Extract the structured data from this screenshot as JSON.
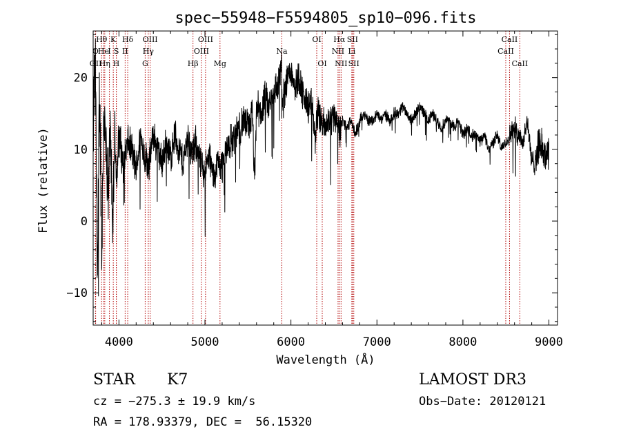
{
  "chart_data": {
    "type": "line",
    "title": "spec−55948−F5594805_sp10−096.fits",
    "xlabel": "Wavelength (Å)",
    "ylabel": "Flux (relative)",
    "xlim": [
      3700,
      9100
    ],
    "ylim": [
      -14.5,
      26.5
    ],
    "xticks": [
      4000,
      5000,
      6000,
      7000,
      8000,
      9000
    ],
    "yticks": [
      -10,
      0,
      10,
      20
    ],
    "ytick_labels": [
      "−10",
      "0",
      "10",
      "20"
    ],
    "grid": false,
    "series": [
      {
        "name": "flux",
        "x": [
          3700,
          3725,
          3750,
          3775,
          3800,
          3825,
          3850,
          3875,
          3900,
          3925,
          3950,
          3975,
          4000,
          4050,
          4100,
          4150,
          4200,
          4250,
          4300,
          4350,
          4400,
          4450,
          4500,
          4550,
          4600,
          4650,
          4700,
          4750,
          4800,
          4850,
          4900,
          4950,
          5000,
          5050,
          5100,
          5150,
          5200,
          5250,
          5300,
          5350,
          5400,
          5450,
          5500,
          5550,
          5580,
          5600,
          5650,
          5700,
          5750,
          5800,
          5850,
          5890,
          5900,
          5950,
          6000,
          6050,
          6100,
          6150,
          6200,
          6250,
          6280,
          6300,
          6350,
          6400,
          6450,
          6500,
          6550,
          6563,
          6600,
          6650,
          6700,
          6750,
          6800,
          6850,
          6900,
          6950,
          7000,
          7050,
          7100,
          7150,
          7200,
          7250,
          7300,
          7350,
          7400,
          7450,
          7500,
          7550,
          7600,
          7650,
          7700,
          7750,
          7800,
          7850,
          7900,
          7950,
          8000,
          8050,
          8100,
          8150,
          8200,
          8250,
          8300,
          8350,
          8400,
          8450,
          8500,
          8550,
          8600,
          8650,
          8700,
          8750,
          8800,
          8850,
          8900,
          8950,
          9000
        ],
        "values": [
          13,
          22,
          -8,
          19,
          -4,
          16,
          9,
          2,
          15,
          -3,
          12,
          6,
          12,
          8,
          11,
          10,
          7,
          12,
          9,
          8,
          12,
          10,
          8,
          11,
          9,
          12,
          10,
          8,
          12,
          9,
          11,
          8,
          7,
          9,
          6,
          8,
          8,
          10,
          11,
          12,
          13,
          14,
          13,
          15,
          5,
          16,
          15,
          17,
          16,
          18,
          19,
          22,
          16,
          20,
          21,
          19,
          20,
          17,
          16,
          16,
          11,
          15,
          14,
          13,
          14,
          15,
          14,
          12,
          14,
          13,
          14,
          12,
          14,
          15,
          14,
          14,
          15,
          14,
          15,
          14,
          15,
          15,
          16,
          15,
          14,
          15,
          16,
          15,
          14,
          15,
          14,
          13,
          14,
          14,
          13,
          14,
          12,
          13,
          12,
          12,
          11,
          12,
          10,
          11,
          12,
          10,
          11,
          12,
          13,
          12,
          11,
          14,
          8,
          9,
          11,
          9,
          10
        ],
        "noise_amplitude": [
          8,
          8,
          8,
          8,
          8,
          7,
          7,
          6,
          6,
          5,
          5,
          4,
          4,
          3,
          3,
          3,
          3,
          3,
          3,
          3,
          3,
          3,
          3,
          3,
          3,
          3,
          3,
          3,
          3,
          3,
          3,
          3,
          3,
          3,
          3,
          3,
          3,
          3,
          3,
          3,
          3,
          3,
          3,
          3,
          3,
          3,
          3,
          3,
          3,
          3,
          3,
          3,
          3,
          3,
          3,
          3,
          3,
          3,
          3,
          3,
          3,
          3,
          3,
          3,
          3,
          3,
          3,
          3,
          1,
          1,
          1,
          1,
          1,
          1,
          1,
          1,
          1,
          1,
          1,
          1,
          1,
          1,
          1,
          1,
          1,
          1,
          1,
          1,
          1,
          1,
          1,
          1,
          1,
          1,
          1,
          1,
          1,
          1,
          1,
          1,
          1,
          1,
          1,
          1,
          1,
          1,
          1,
          2,
          2,
          2,
          2,
          2,
          2,
          3,
          3,
          3,
          3
        ]
      }
    ],
    "line_markers": [
      {
        "label": "Hθ",
        "x": 3798,
        "row": 1
      },
      {
        "label": "O",
        "x": 3727,
        "row": 2
      },
      {
        "label": "OII",
        "x": 3729,
        "row": 3
      },
      {
        "label": "He",
        "x": 3820,
        "row": 2
      },
      {
        "label": "Hη",
        "x": 3835,
        "row": 3
      },
      {
        "label": "K",
        "x": 3934,
        "row": 1
      },
      {
        "label": "I",
        "x": 3889,
        "row": 2
      },
      {
        "label": "S",
        "x": 3970,
        "row": 2
      },
      {
        "label": "H",
        "x": 3969,
        "row": 3
      },
      {
        "label": "Hδ",
        "x": 4102,
        "row": 1
      },
      {
        "label": "II",
        "x": 4072,
        "row": 2
      },
      {
        "label": "OIII",
        "x": 4363,
        "row": 1
      },
      {
        "label": "Hγ",
        "x": 4341,
        "row": 2
      },
      {
        "label": "G",
        "x": 4305,
        "row": 3
      },
      {
        "label": "OIII",
        "x": 5007,
        "row": 1
      },
      {
        "label": "OIII",
        "x": 4959,
        "row": 2
      },
      {
        "label": "Hβ",
        "x": 4861,
        "row": 3
      },
      {
        "label": "Mg",
        "x": 5175,
        "row": 3
      },
      {
        "label": "Na",
        "x": 5894,
        "row": 2
      },
      {
        "label": "OI",
        "x": 6300,
        "row": 1
      },
      {
        "label": "OI",
        "x": 6364,
        "row": 3
      },
      {
        "label": "Hα",
        "x": 6563,
        "row": 1
      },
      {
        "label": "SII",
        "x": 6716,
        "row": 1
      },
      {
        "label": "NII",
        "x": 6548,
        "row": 2
      },
      {
        "label": "Li",
        "x": 6708,
        "row": 2
      },
      {
        "label": "NII",
        "x": 6583,
        "row": 3
      },
      {
        "label": "SII",
        "x": 6731,
        "row": 3
      },
      {
        "label": "CaII",
        "x": 8542,
        "row": 1
      },
      {
        "label": "CaII",
        "x": 8498,
        "row": 2
      },
      {
        "label": "CaII",
        "x": 8662,
        "row": 3
      }
    ],
    "colors": {
      "spectrum": "#000000",
      "marker": "#b20000",
      "axes": "#000000"
    }
  },
  "info": {
    "class": "STAR",
    "subclass": "K7",
    "survey": "LAMOST DR3",
    "redshift": "cz = −275.3 ± 19.9 km/s",
    "obs_date": "Obs−Date: 20120121",
    "coords": "RA = 178.93379, DEC =  56.15320"
  }
}
